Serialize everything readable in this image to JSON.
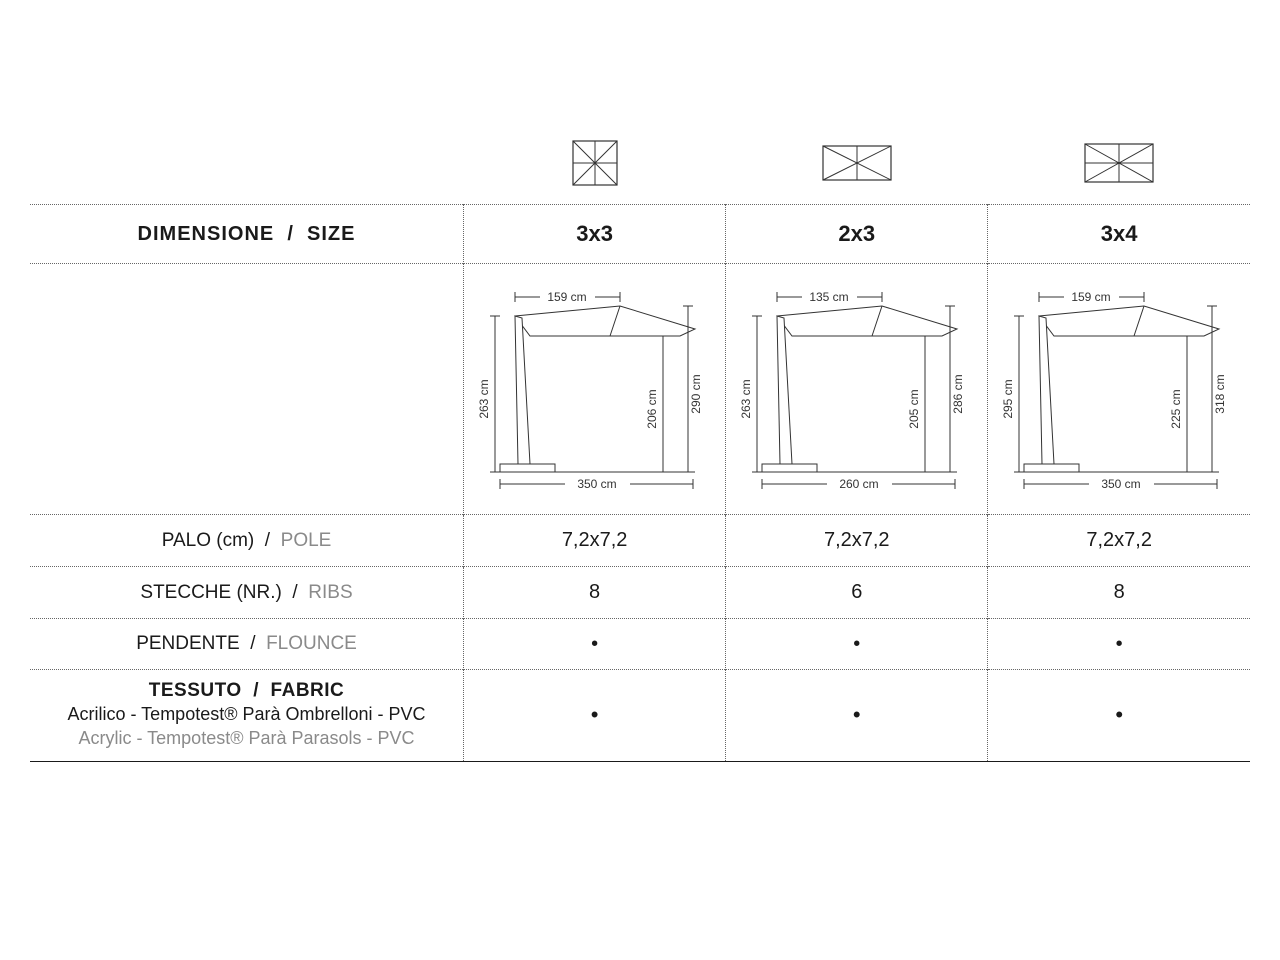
{
  "colors": {
    "text": "#1a1a1a",
    "muted": "#8a8a8a",
    "line": "#333333",
    "dotted": "#666666",
    "bg": "#ffffff"
  },
  "icons": {
    "type": "top-view-ribs",
    "stroke": "#333333",
    "stroke_width": 1
  },
  "header": {
    "label_it": "DIMENSIONE",
    "label_en": "SIZE",
    "sizes": [
      "3x3",
      "2x3",
      "3x4"
    ]
  },
  "diagrams": [
    {
      "top_width": "159 cm",
      "pole_height": "263 cm",
      "clearance": "206 cm",
      "total_height": "290 cm",
      "base_width": "350 cm"
    },
    {
      "top_width": "135 cm",
      "pole_height": "263 cm",
      "clearance": "205 cm",
      "total_height": "286 cm",
      "base_width": "260 cm"
    },
    {
      "top_width": "159 cm",
      "pole_height": "295 cm",
      "clearance": "225 cm",
      "total_height": "318 cm",
      "base_width": "350 cm"
    }
  ],
  "rows": {
    "pole": {
      "label_it": "PALO (cm)",
      "label_en": "POLE",
      "values": [
        "7,2x7,2",
        "7,2x7,2",
        "7,2x7,2"
      ]
    },
    "ribs": {
      "label_it": "STECCHE (NR.)",
      "label_en": "RIBS",
      "values": [
        "8",
        "6",
        "8"
      ]
    },
    "flounce": {
      "label_it": "PENDENTE",
      "label_en": "FLOUNCE",
      "values": [
        "•",
        "•",
        "•"
      ]
    },
    "fabric": {
      "label_it": "TESSUTO",
      "label_en": "FABRIC",
      "sub_it": "Acrilico - Tempotest® Parà Ombrelloni - PVC",
      "sub_en": "Acrylic - Tempotest® Parà Parasols - PVC",
      "values": [
        "•",
        "•",
        "•"
      ]
    }
  }
}
